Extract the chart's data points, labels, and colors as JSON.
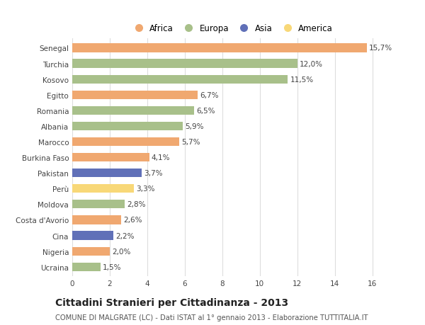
{
  "countries": [
    "Senegal",
    "Turchia",
    "Kosovo",
    "Egitto",
    "Romania",
    "Albania",
    "Marocco",
    "Burkina Faso",
    "Pakistan",
    "Perù",
    "Moldova",
    "Costa d'Avorio",
    "Cina",
    "Nigeria",
    "Ucraina"
  ],
  "values": [
    15.7,
    12.0,
    11.5,
    6.7,
    6.5,
    5.9,
    5.7,
    4.1,
    3.7,
    3.3,
    2.8,
    2.6,
    2.2,
    2.0,
    1.5
  ],
  "continents": [
    "Africa",
    "Europa",
    "Europa",
    "Africa",
    "Europa",
    "Europa",
    "Africa",
    "Africa",
    "Asia",
    "America",
    "Europa",
    "Africa",
    "Asia",
    "Africa",
    "Europa"
  ],
  "continent_colors": {
    "Africa": "#F0A870",
    "Europa": "#A8C08A",
    "Asia": "#6070B8",
    "America": "#F8D878"
  },
  "legend_order": [
    "Africa",
    "Europa",
    "Asia",
    "America"
  ],
  "title": "Cittadini Stranieri per Cittadinanza - 2013",
  "subtitle": "COMUNE DI MALGRATE (LC) - Dati ISTAT al 1° gennaio 2013 - Elaborazione TUTTITALIA.IT",
  "xlim": [
    0,
    17
  ],
  "xticks": [
    0,
    2,
    4,
    6,
    8,
    10,
    12,
    14,
    16
  ],
  "background_color": "#ffffff",
  "grid_color": "#dddddd",
  "bar_height": 0.55,
  "label_fontsize": 7.5,
  "tick_fontsize": 7.5,
  "title_fontsize": 10,
  "subtitle_fontsize": 7.2,
  "legend_fontsize": 8.5
}
